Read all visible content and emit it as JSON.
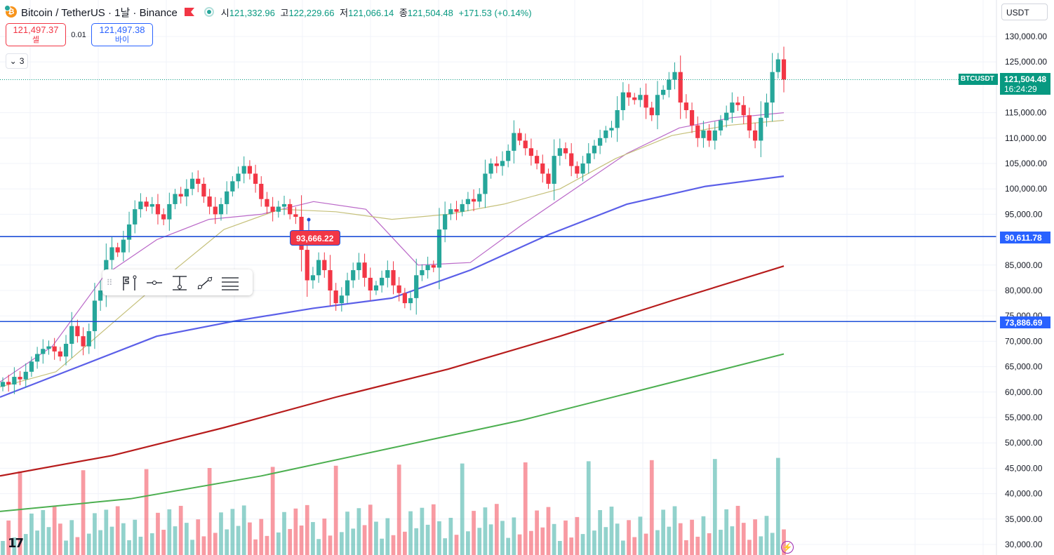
{
  "legend": {
    "coin_icon": "bitcoin-icon",
    "title": "Bitcoin / TetherUS · 1날 · Binance",
    "ohlc": [
      {
        "k": "시",
        "v": "121,332.96"
      },
      {
        "k": "고",
        "v": "122,229.66"
      },
      {
        "k": "저",
        "v": "121,066.14"
      },
      {
        "k": "종",
        "v": "121,504.48"
      }
    ],
    "change": "+171.53 (+0.14%)"
  },
  "trade": {
    "sell_price": "121,497.37",
    "sell_label": "셀",
    "spread": "0.01",
    "buy_price": "121,497.38",
    "buy_label": "바이"
  },
  "indicators_toggle": {
    "icon": "chevron-down-icon",
    "count": "3"
  },
  "currency_selector": "USDT",
  "price_scale": [
    "130,000.00",
    "125,000.00",
    "115,000.00",
    "110,000.00",
    "105,000.00",
    "100,000.00",
    "95,000.00",
    "85,000.00",
    "80,000.00",
    "75,000.00",
    "70,000.00",
    "65,000.00",
    "60,000.00",
    "55,000.00",
    "50,000.00",
    "45,000.00",
    "40,000.00",
    "35,000.00",
    "30,000.00"
  ],
  "last_price": {
    "symbol": "BTCUSDT",
    "price": "121,504.48",
    "countdown": "16:24:29"
  },
  "horizontal_lines": [
    {
      "price": "90,611.78",
      "value": 90611.78
    },
    {
      "price": "73,886.69",
      "value": 73886.69
    }
  ],
  "drawing_label": {
    "price": "93,666.22",
    "value": 93666.22
  },
  "drawing_toolbar": [
    "flag-pin-icon",
    "horizontal-ray-icon",
    "vertical-line-icon",
    "trend-line-icon",
    "parallel-lines-icon"
  ],
  "colors": {
    "up": "#26a69a",
    "down": "#f23645",
    "ma_purple": "#ba68c8",
    "ma_olive": "#c5c07a",
    "ma_blue": "#5b5fe8",
    "ma_darkred": "#b71c1c",
    "ma_green": "#4caf50",
    "hline": "#1e4fd8"
  },
  "chart_data": {
    "type": "candlestick",
    "series": [
      {
        "name": "BTCUSDT",
        "close": [
          62000,
          61500,
          63000,
          62500,
          64000,
          66000,
          67500,
          68500,
          69000,
          68000,
          67000,
          69500,
          73000,
          71000,
          69000,
          72000,
          78000,
          80000,
          86000,
          88500,
          87500,
          90000,
          93000,
          96000,
          97500,
          96500,
          97000,
          95000,
          94000,
          97000,
          99000,
          98500,
          100000,
          102000,
          101000,
          98500,
          96500,
          95000,
          97000,
          99500,
          101500,
          103000,
          104500,
          103000,
          101000,
          98000,
          96500,
          95500,
          96500,
          97000,
          95000,
          94500,
          88000,
          82000,
          83000,
          86000,
          84000,
          80000,
          77500,
          79000,
          82000,
          84000,
          85500,
          82500,
          80000,
          81000,
          82500,
          84000,
          81000,
          79500,
          77500,
          78500,
          83000,
          84000,
          85000,
          84500,
          92000,
          95000,
          96000,
          95500,
          97000,
          98000,
          97500,
          99000,
          103000,
          105000,
          104500,
          105500,
          107500,
          111000,
          109500,
          108000,
          106500,
          105000,
          103000,
          101000,
          106500,
          108000,
          107000,
          104500,
          103000,
          105000,
          107000,
          108500,
          110000,
          111500,
          112000,
          115500,
          119000,
          118000,
          117500,
          118500,
          116000,
          114500,
          118500,
          119500,
          121500,
          123000,
          117000,
          115500,
          112500,
          110000,
          111500,
          109500,
          111500,
          113500,
          115000,
          117000,
          116500,
          114500,
          111500,
          109500,
          114000,
          117000,
          123000,
          125500,
          121504
        ]
      },
      {
        "name": "MA purple",
        "values": [
          62000,
          69000,
          83000,
          90000,
          94000,
          95000,
          97500,
          96000,
          85000,
          85500,
          93000,
          100000,
          107000,
          112000,
          114000,
          115000
        ]
      },
      {
        "name": "MA olive",
        "values": [
          61000,
          64000,
          73500,
          83000,
          92000,
          96000,
          95500,
          94000,
          95000,
          97000,
          100000,
          106000,
          110500,
          112500,
          113500
        ]
      },
      {
        "name": "MA blue",
        "values": [
          59000,
          65000,
          71000,
          74000,
          76500,
          78500,
          84000,
          91000,
          97000,
          100500,
          102500
        ]
      },
      {
        "name": "MA dark red",
        "values": [
          43500,
          47500,
          53000,
          59000,
          64500,
          71000,
          78000,
          84800
        ]
      },
      {
        "name": "MA green",
        "values": [
          36500,
          39000,
          43500,
          49000,
          54500,
          61000,
          67500
        ]
      }
    ],
    "ylim": [
      30000,
      131000
    ],
    "grid": true
  }
}
